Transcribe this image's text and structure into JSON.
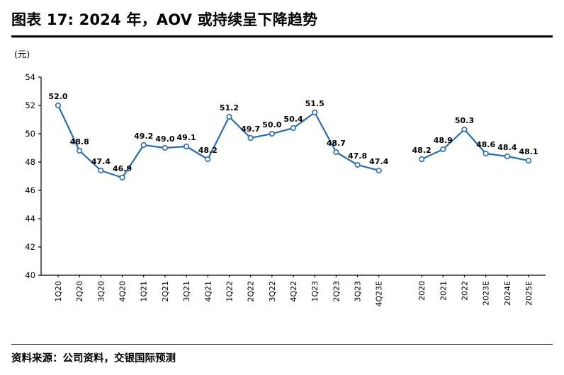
{
  "header": {
    "title": "图表 17: 2024 年，AOV 或持续呈下降趋势"
  },
  "chart_data": {
    "type": "line",
    "title": "图表 17: 2024 年，AOV 或持续呈下降趋势",
    "unit_label": "(元)",
    "ylim": [
      40,
      54
    ],
    "ytick_step": 2,
    "grid": false,
    "legend": "none",
    "line_color": "#2B6CA9",
    "marker_fill": "#FFFFFF",
    "axis_color": "#000000",
    "gap_slots": 2,
    "series": [
      {
        "name": "quarterly-aov",
        "categories": [
          "1Q20",
          "2Q20",
          "3Q20",
          "4Q20",
          "1Q21",
          "2Q21",
          "3Q21",
          "4Q21",
          "1Q22",
          "2Q22",
          "3Q22",
          "4Q22",
          "1Q23",
          "2Q23",
          "3Q23",
          "4Q23E"
        ],
        "values": [
          52.0,
          48.8,
          47.4,
          46.9,
          49.2,
          49.0,
          49.1,
          48.2,
          51.2,
          49.7,
          50.0,
          50.4,
          51.5,
          48.7,
          47.8,
          47.4
        ]
      },
      {
        "name": "annual-aov",
        "categories": [
          "2020",
          "2021",
          "2022",
          "2023E",
          "2024E",
          "2025E"
        ],
        "values": [
          48.2,
          48.9,
          50.3,
          48.6,
          48.4,
          48.1
        ]
      }
    ]
  },
  "footer": {
    "source": "资料来源：公司资料，交银国际预测"
  }
}
